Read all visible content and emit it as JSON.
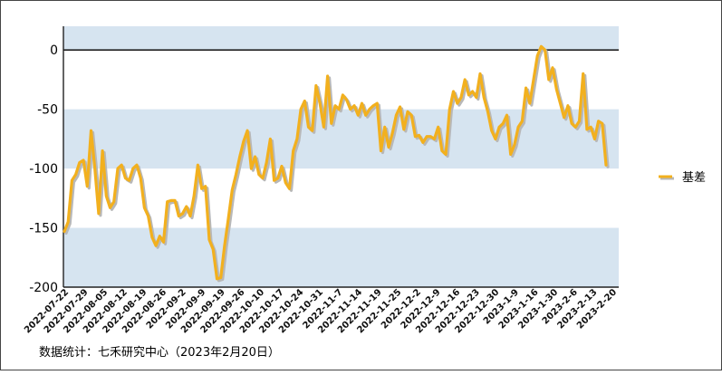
{
  "footer_note": "数据统计：七禾研究中心（2023年2月20日）",
  "chart_data": {
    "type": "line",
    "ylim": [
      -200,
      20
    ],
    "y_ticks": [
      0,
      -50,
      -100,
      -150,
      -200
    ],
    "band_color": "#d6e4f0",
    "line_color": "#f2b01e",
    "shadow_color": "#b8b8b8",
    "legend_position": "right",
    "grid": false,
    "x_tick_labels": [
      "2022-07-22",
      "2022-07-29",
      "2022-08-05",
      "2022-08-12",
      "2022-08-19",
      "2022-08-26",
      "2022-09-2",
      "2022-09-9",
      "2022-09-19",
      "2022-09-26",
      "2022-10-10",
      "2022-10-17",
      "2022-10-24",
      "2022-10-31",
      "2022-11-7",
      "2022-11-14",
      "2022-11-19",
      "2022-11-25",
      "2022-12-2",
      "2022-12-9",
      "2022-12-16",
      "2022-12-23",
      "2022-12-30",
      "2023-1-9",
      "2023-1-16",
      "2023-1-30",
      "2023-2-6",
      "2023-2-13",
      "2023-2-20"
    ],
    "series": [
      {
        "name": "基差",
        "values": [
          -153,
          -145,
          -110,
          -105,
          -95,
          -93,
          -115,
          -68,
          -100,
          -138,
          -85,
          -123,
          -133,
          -128,
          -100,
          -97,
          -108,
          -110,
          -100,
          -97,
          -108,
          -133,
          -140,
          -158,
          -165,
          -157,
          -162,
          -128,
          -127,
          -127,
          -140,
          -138,
          -132,
          -140,
          -123,
          -97,
          -117,
          -115,
          -160,
          -168,
          -193,
          -192,
          -165,
          -142,
          -118,
          -105,
          -90,
          -77,
          -68,
          -100,
          -90,
          -105,
          -108,
          -95,
          -75,
          -110,
          -108,
          -98,
          -112,
          -117,
          -85,
          -75,
          -50,
          -43,
          -65,
          -68,
          -30,
          -45,
          -65,
          -22,
          -62,
          -47,
          -50,
          -38,
          -42,
          -50,
          -47,
          -55,
          -45,
          -55,
          -50,
          -47,
          -45,
          -85,
          -65,
          -82,
          -70,
          -55,
          -48,
          -67,
          -52,
          -55,
          -73,
          -72,
          -78,
          -73,
          -73,
          -75,
          -65,
          -85,
          -88,
          -50,
          -35,
          -45,
          -40,
          -25,
          -38,
          -35,
          -40,
          -20,
          -40,
          -52,
          -68,
          -75,
          -65,
          -62,
          -55,
          -88,
          -80,
          -65,
          -60,
          -32,
          -45,
          -25,
          -5,
          3,
          0,
          -25,
          -15,
          -33,
          -45,
          -57,
          -47,
          -62,
          -65,
          -60,
          -20,
          -67,
          -65,
          -75,
          -60,
          -62,
          -97
        ]
      }
    ]
  }
}
